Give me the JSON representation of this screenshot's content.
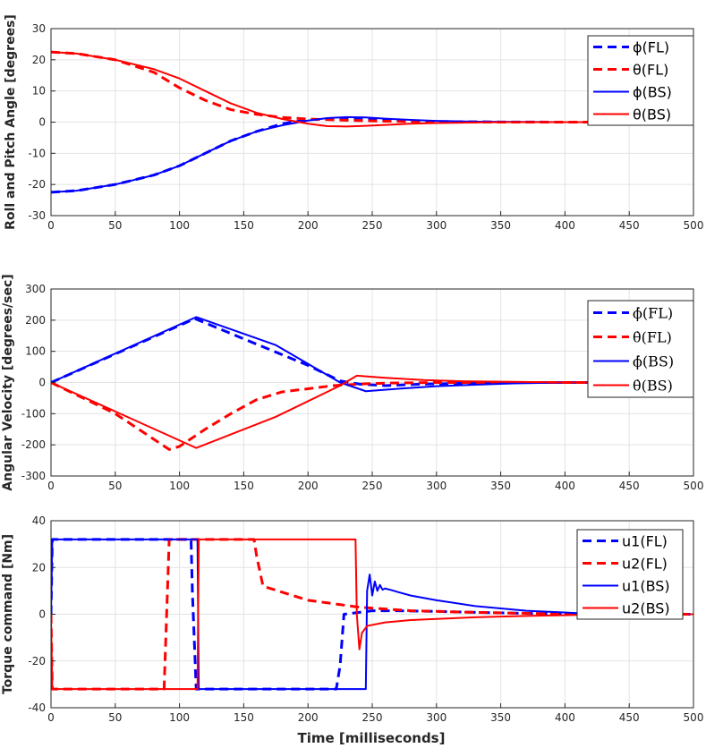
{
  "chart_data": [
    {
      "type": "line",
      "ylabel": "Roll and Pitch Angle [degrees]",
      "xlabel": "",
      "xlim": [
        0,
        500
      ],
      "ylim": [
        -30,
        30
      ],
      "xticks": [
        0,
        50,
        100,
        150,
        200,
        250,
        300,
        350,
        400,
        450,
        500
      ],
      "yticks": [
        -30,
        -20,
        -10,
        0,
        10,
        20,
        30
      ],
      "grid": true,
      "legend_position": "top-right",
      "legend_font": "sans",
      "series": [
        {
          "name": "ϕ(FL)",
          "color": "#0000ff",
          "style": "dashed",
          "x": [
            0,
            20,
            50,
            80,
            100,
            120,
            140,
            160,
            180,
            200,
            230,
            260,
            300,
            350,
            400,
            450,
            500
          ],
          "y": [
            -22.5,
            -22,
            -20,
            -17,
            -14,
            -10,
            -6,
            -3,
            -0.5,
            0.8,
            1.0,
            0.6,
            0.2,
            0.05,
            0.0,
            0.0,
            0.0
          ]
        },
        {
          "name": "θ(FL)",
          "color": "#ff0000",
          "style": "dashed",
          "x": [
            0,
            20,
            50,
            80,
            100,
            120,
            140,
            160,
            180,
            200,
            230,
            260,
            300,
            350,
            400,
            450,
            500
          ],
          "y": [
            22.5,
            22,
            20,
            16,
            11,
            7,
            4,
            2.5,
            1.5,
            1.0,
            0.6,
            0.3,
            0.1,
            0.0,
            0.0,
            0.0,
            0.0
          ]
        },
        {
          "name": "ϕ(BS)",
          "color": "#0000ff",
          "style": "solid",
          "x": [
            0,
            20,
            50,
            80,
            100,
            120,
            140,
            160,
            180,
            200,
            215,
            230,
            245,
            260,
            280,
            300,
            330,
            350,
            400,
            450,
            500
          ],
          "y": [
            -22.5,
            -22,
            -20,
            -17,
            -14,
            -10,
            -6,
            -3,
            -1,
            0.5,
            1.3,
            1.6,
            1.5,
            1.1,
            0.7,
            0.4,
            0.15,
            0.1,
            0.0,
            0.0,
            0.0
          ]
        },
        {
          "name": "θ(BS)",
          "color": "#ff0000",
          "style": "solid",
          "x": [
            0,
            20,
            50,
            80,
            100,
            120,
            140,
            160,
            180,
            200,
            215,
            230,
            245,
            260,
            280,
            300,
            330,
            350,
            400,
            450,
            500
          ],
          "y": [
            22.5,
            22,
            20,
            17,
            14,
            10,
            6,
            3,
            1,
            -0.5,
            -1.3,
            -1.4,
            -1.2,
            -0.9,
            -0.5,
            -0.3,
            -0.1,
            0.0,
            0.0,
            0.0,
            0.0
          ]
        }
      ]
    },
    {
      "type": "line",
      "ylabel": "Angular Velocity [degrees/sec]",
      "xlabel": "",
      "xlim": [
        0,
        500
      ],
      "ylim": [
        -300,
        300
      ],
      "xticks": [
        0,
        50,
        100,
        150,
        200,
        250,
        300,
        350,
        400,
        450,
        500
      ],
      "yticks": [
        -300,
        -200,
        -100,
        0,
        100,
        200,
        300
      ],
      "grid": true,
      "legend_position": "top-right",
      "legend_font": "serif",
      "series": [
        {
          "name": "ϕ̇(FL)",
          "color": "#0000ff",
          "style": "dashed",
          "x": [
            0,
            112,
            150,
            200,
            225,
            240,
            260,
            290,
            320,
            350,
            400,
            450,
            500
          ],
          "y": [
            0,
            205,
            140,
            55,
            5,
            -5,
            -10,
            -5,
            -3,
            0,
            0,
            0,
            0
          ]
        },
        {
          "name": "θ̇(FL)",
          "color": "#ff0000",
          "style": "dashed",
          "x": [
            0,
            50,
            92,
            100,
            120,
            140,
            160,
            180,
            200,
            220,
            240,
            260,
            300,
            350,
            400,
            450,
            500
          ],
          "y": [
            0,
            -100,
            -215,
            -205,
            -150,
            -100,
            -55,
            -30,
            -20,
            -10,
            -5,
            -2,
            0,
            0,
            0,
            0,
            0
          ]
        },
        {
          "name": "ϕ̇(BS)",
          "color": "#0000ff",
          "style": "solid",
          "x": [
            0,
            113,
            175,
            225,
            245,
            270,
            300,
            330,
            360,
            400,
            450,
            500
          ],
          "y": [
            0,
            210,
            120,
            0,
            -28,
            -20,
            -12,
            -7,
            -3,
            0,
            0,
            0
          ]
        },
        {
          "name": "θ̇(BS)",
          "color": "#ff0000",
          "style": "solid",
          "x": [
            0,
            113,
            175,
            225,
            238,
            260,
            290,
            320,
            360,
            400,
            450,
            500
          ],
          "y": [
            0,
            -210,
            -110,
            -10,
            22,
            15,
            8,
            4,
            2,
            0,
            0,
            0
          ]
        }
      ]
    },
    {
      "type": "line",
      "ylabel": "Torque command [Nm]",
      "xlabel": "Time [milliseconds]",
      "xlim": [
        0,
        500
      ],
      "ylim": [
        -40,
        40
      ],
      "xticks": [
        0,
        50,
        100,
        150,
        200,
        250,
        300,
        350,
        400,
        450,
        500
      ],
      "yticks": [
        -40,
        -20,
        0,
        20,
        40
      ],
      "grid": true,
      "legend_position": "top-right",
      "legend_font": "sans",
      "series": [
        {
          "name": "u1(FL)",
          "color": "#0000ff",
          "style": "dashed",
          "x": [
            0,
            1,
            109,
            110,
            113,
            222,
            225,
            228,
            250,
            270,
            300,
            330,
            360,
            400,
            450,
            500
          ],
          "y": [
            0,
            32,
            32,
            10,
            -32,
            -32,
            -22,
            0,
            1.5,
            1.5,
            1.2,
            0.8,
            0.5,
            0,
            0,
            0
          ]
        },
        {
          "name": "u2(FL)",
          "color": "#ff0000",
          "style": "dashed",
          "x": [
            0,
            1,
            88,
            92,
            158,
            160,
            165,
            200,
            240,
            280,
            330,
            380,
            420,
            450,
            500
          ],
          "y": [
            0,
            -32,
            -32,
            32,
            32,
            25,
            12,
            6,
            3,
            1.5,
            0.8,
            0.3,
            0,
            0,
            0
          ]
        },
        {
          "name": "u1(BS)",
          "color": "#0000ff",
          "style": "solid",
          "x": [
            0,
            1,
            114,
            115,
            245,
            246,
            248,
            250,
            252,
            254,
            256,
            258,
            260,
            265,
            270,
            280,
            300,
            330,
            370,
            410,
            450,
            500
          ],
          "y": [
            0,
            32,
            32,
            -32,
            -32,
            10,
            17,
            8,
            14,
            10,
            12.5,
            10.5,
            11,
            10.3,
            9.5,
            8,
            6,
            3.5,
            1.5,
            0.5,
            0,
            0
          ]
        },
        {
          "name": "u2(BS)",
          "color": "#ff0000",
          "style": "solid",
          "x": [
            0,
            1,
            114,
            115,
            237,
            238,
            240,
            242,
            246,
            260,
            280,
            300,
            330,
            370,
            410,
            450,
            500
          ],
          "y": [
            0,
            -32,
            -32,
            32,
            32,
            0,
            -15,
            -8,
            -5,
            -3.5,
            -2.5,
            -2,
            -1.3,
            -0.7,
            -0.3,
            0,
            0
          ]
        }
      ]
    }
  ]
}
